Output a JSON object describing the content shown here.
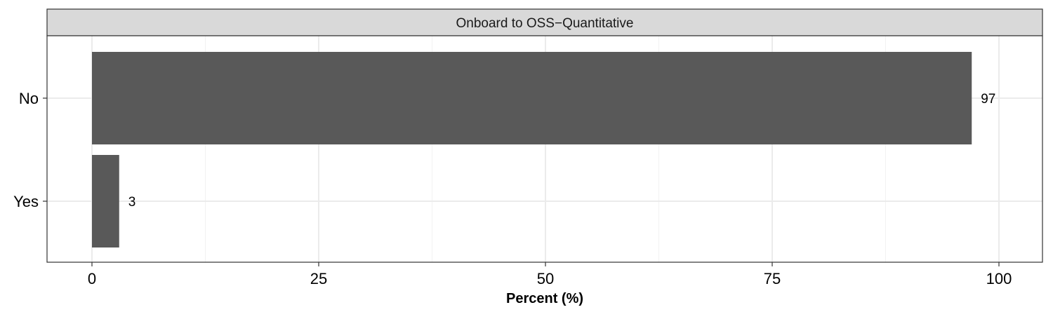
{
  "chart_data": {
    "type": "bar",
    "orientation": "horizontal",
    "facet_title": "Onboard to OSS−Quantitative",
    "categories": [
      "No",
      "Yes"
    ],
    "values": [
      97,
      3
    ],
    "data_labels": [
      "97",
      "3"
    ],
    "xlabel": "Percent (%)",
    "ylabel": "",
    "xlim": [
      0,
      100
    ],
    "x_ticks": [
      0,
      25,
      50,
      75,
      100
    ],
    "x_tick_labels": [
      "0",
      "25",
      "50",
      "75",
      "100"
    ],
    "grid": true,
    "legend": "none",
    "colors": {
      "bar": "#595959",
      "panel_border": "#333333",
      "strip_fill": "#d9d9d9",
      "grid_major": "#ebebeb",
      "grid_minor": "#f2f2f2",
      "text": "#000000",
      "strip_text": "#1a1a1a"
    }
  }
}
